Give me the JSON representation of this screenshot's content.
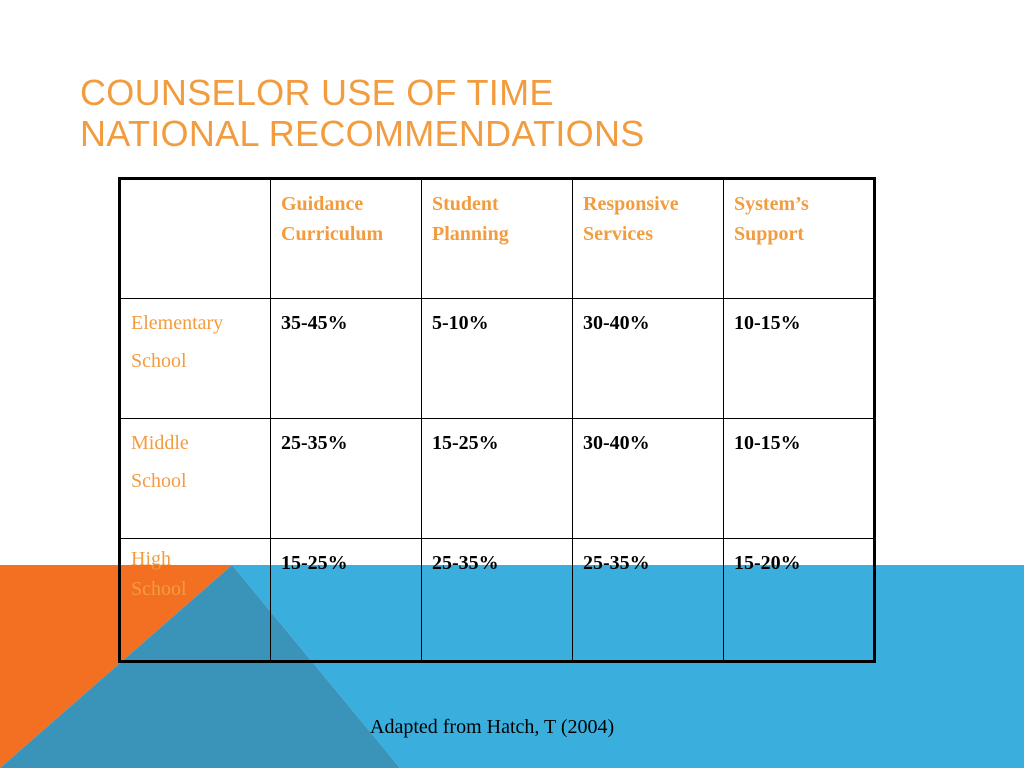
{
  "slide": {
    "title_line1": "Counselor Use of Time",
    "title_line2": "National Recommendations",
    "caption": "Adapted from Hatch, T (2004)",
    "colors": {
      "accent_orange": "#f39c3f",
      "band_blue": "#3aafde",
      "band_orange": "#f36f21",
      "overlap": "#3a93b8"
    }
  },
  "table": {
    "headers": [
      "",
      [
        "Guidance",
        "Curriculum"
      ],
      [
        "Student",
        "Planning"
      ],
      [
        "Responsive",
        "Services"
      ],
      [
        "System’s",
        "Support"
      ]
    ],
    "rows": [
      {
        "label": [
          "Elementary",
          "School"
        ],
        "values": [
          "35-45%",
          "5-10%",
          "30-40%",
          "10-15%"
        ]
      },
      {
        "label": [
          "Middle",
          "School"
        ],
        "values": [
          "25-35%",
          "15-25%",
          "30-40%",
          "10-15%"
        ]
      },
      {
        "label": [
          "High",
          "School"
        ],
        "values": [
          "15-25%",
          "25-35%",
          "25-35%",
          "15-20%"
        ]
      }
    ]
  }
}
